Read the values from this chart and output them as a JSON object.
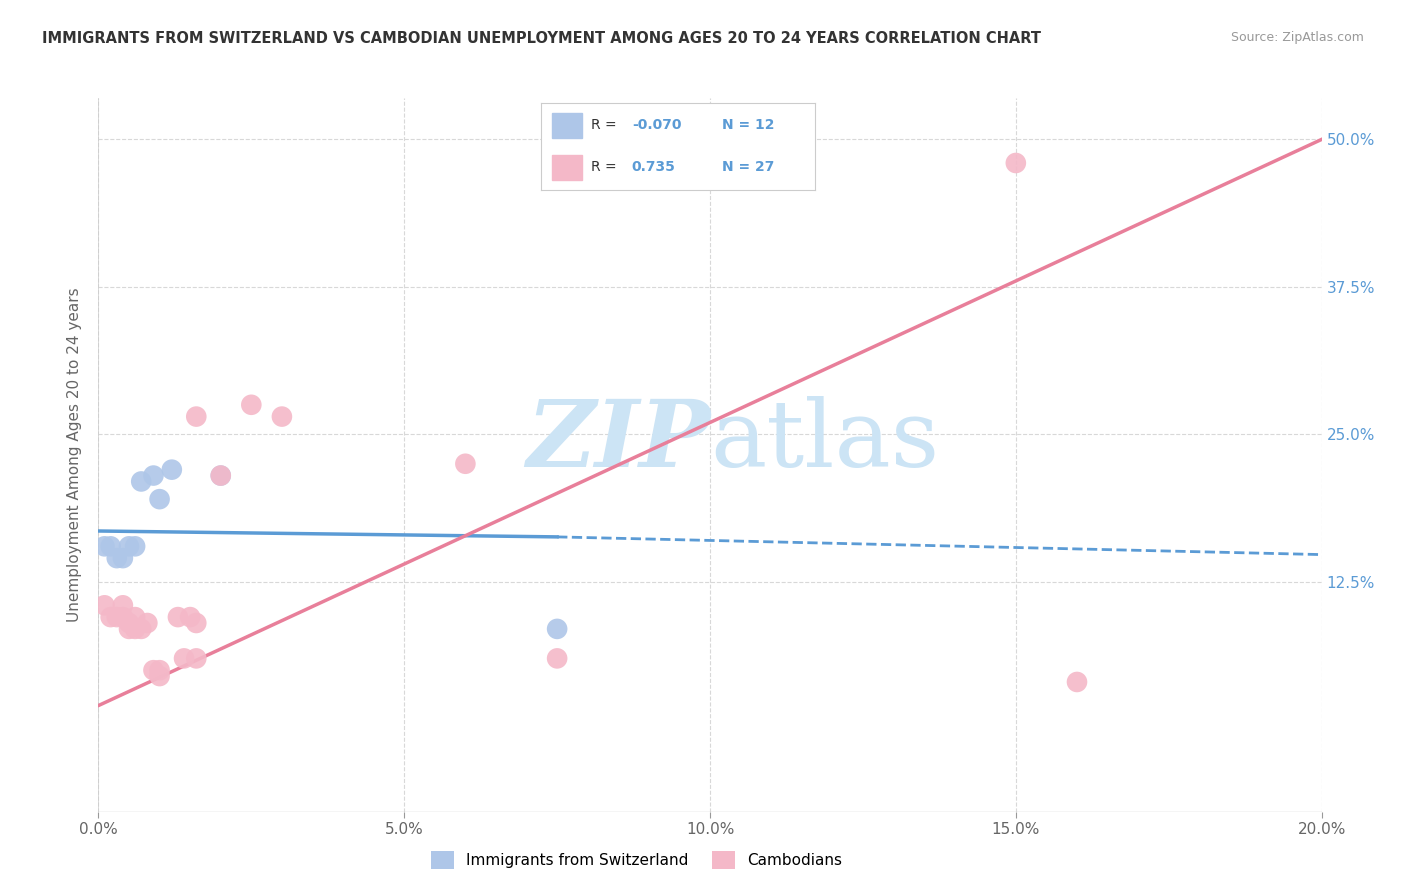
{
  "title": "IMMIGRANTS FROM SWITZERLAND VS CAMBODIAN UNEMPLOYMENT AMONG AGES 20 TO 24 YEARS CORRELATION CHART",
  "source": "Source: ZipAtlas.com",
  "ylabel": "Unemployment Among Ages 20 to 24 years",
  "xlabel_ticks": [
    "0.0%",
    "5.0%",
    "10.0%",
    "15.0%",
    "20.0%"
  ],
  "xlabel_vals": [
    0.0,
    0.05,
    0.1,
    0.15,
    0.2
  ],
  "ylabel_ticks": [
    "12.5%",
    "25.0%",
    "37.5%",
    "50.0%"
  ],
  "ylabel_vals": [
    0.125,
    0.25,
    0.375,
    0.5
  ],
  "xlim": [
    0.0,
    0.2
  ],
  "ylim": [
    -0.07,
    0.535
  ],
  "swiss_points": [
    [
      0.001,
      0.155
    ],
    [
      0.002,
      0.155
    ],
    [
      0.003,
      0.145
    ],
    [
      0.004,
      0.145
    ],
    [
      0.005,
      0.155
    ],
    [
      0.006,
      0.155
    ],
    [
      0.007,
      0.21
    ],
    [
      0.009,
      0.215
    ],
    [
      0.01,
      0.195
    ],
    [
      0.012,
      0.22
    ],
    [
      0.02,
      0.215
    ],
    [
      0.075,
      0.085
    ]
  ],
  "swiss_solid_line": {
    "x": [
      0.0,
      0.075
    ],
    "y": [
      0.168,
      0.163
    ],
    "color": "#5b9bd5"
  },
  "swiss_dashed_line": {
    "x": [
      0.075,
      0.2
    ],
    "y": [
      0.163,
      0.148
    ],
    "color": "#5b9bd5"
  },
  "cambodian_points": [
    [
      0.001,
      0.105
    ],
    [
      0.002,
      0.095
    ],
    [
      0.003,
      0.095
    ],
    [
      0.004,
      0.095
    ],
    [
      0.004,
      0.105
    ],
    [
      0.005,
      0.09
    ],
    [
      0.005,
      0.085
    ],
    [
      0.006,
      0.085
    ],
    [
      0.006,
      0.095
    ],
    [
      0.007,
      0.085
    ],
    [
      0.008,
      0.09
    ],
    [
      0.009,
      0.05
    ],
    [
      0.01,
      0.045
    ],
    [
      0.01,
      0.05
    ],
    [
      0.013,
      0.095
    ],
    [
      0.014,
      0.06
    ],
    [
      0.015,
      0.095
    ],
    [
      0.016,
      0.06
    ],
    [
      0.016,
      0.265
    ],
    [
      0.016,
      0.09
    ],
    [
      0.02,
      0.215
    ],
    [
      0.025,
      0.275
    ],
    [
      0.03,
      0.265
    ],
    [
      0.06,
      0.225
    ],
    [
      0.075,
      0.06
    ],
    [
      0.15,
      0.48
    ],
    [
      0.16,
      0.04
    ]
  ],
  "cambodian_line": {
    "x": [
      0.0,
      0.2
    ],
    "y": [
      0.02,
      0.5
    ],
    "color": "#e87f9a"
  },
  "watermark_color": "#cce4f5",
  "background_color": "#ffffff",
  "grid_color": "#d8d8d8",
  "legend_entries": [
    {
      "color": "#aec6e8"
    },
    {
      "color": "#f4b8c8"
    }
  ],
  "legend_bottom": [
    {
      "label": "Immigrants from Switzerland",
      "color": "#aec6e8"
    },
    {
      "label": "Cambodians",
      "color": "#f4b8c8"
    }
  ]
}
